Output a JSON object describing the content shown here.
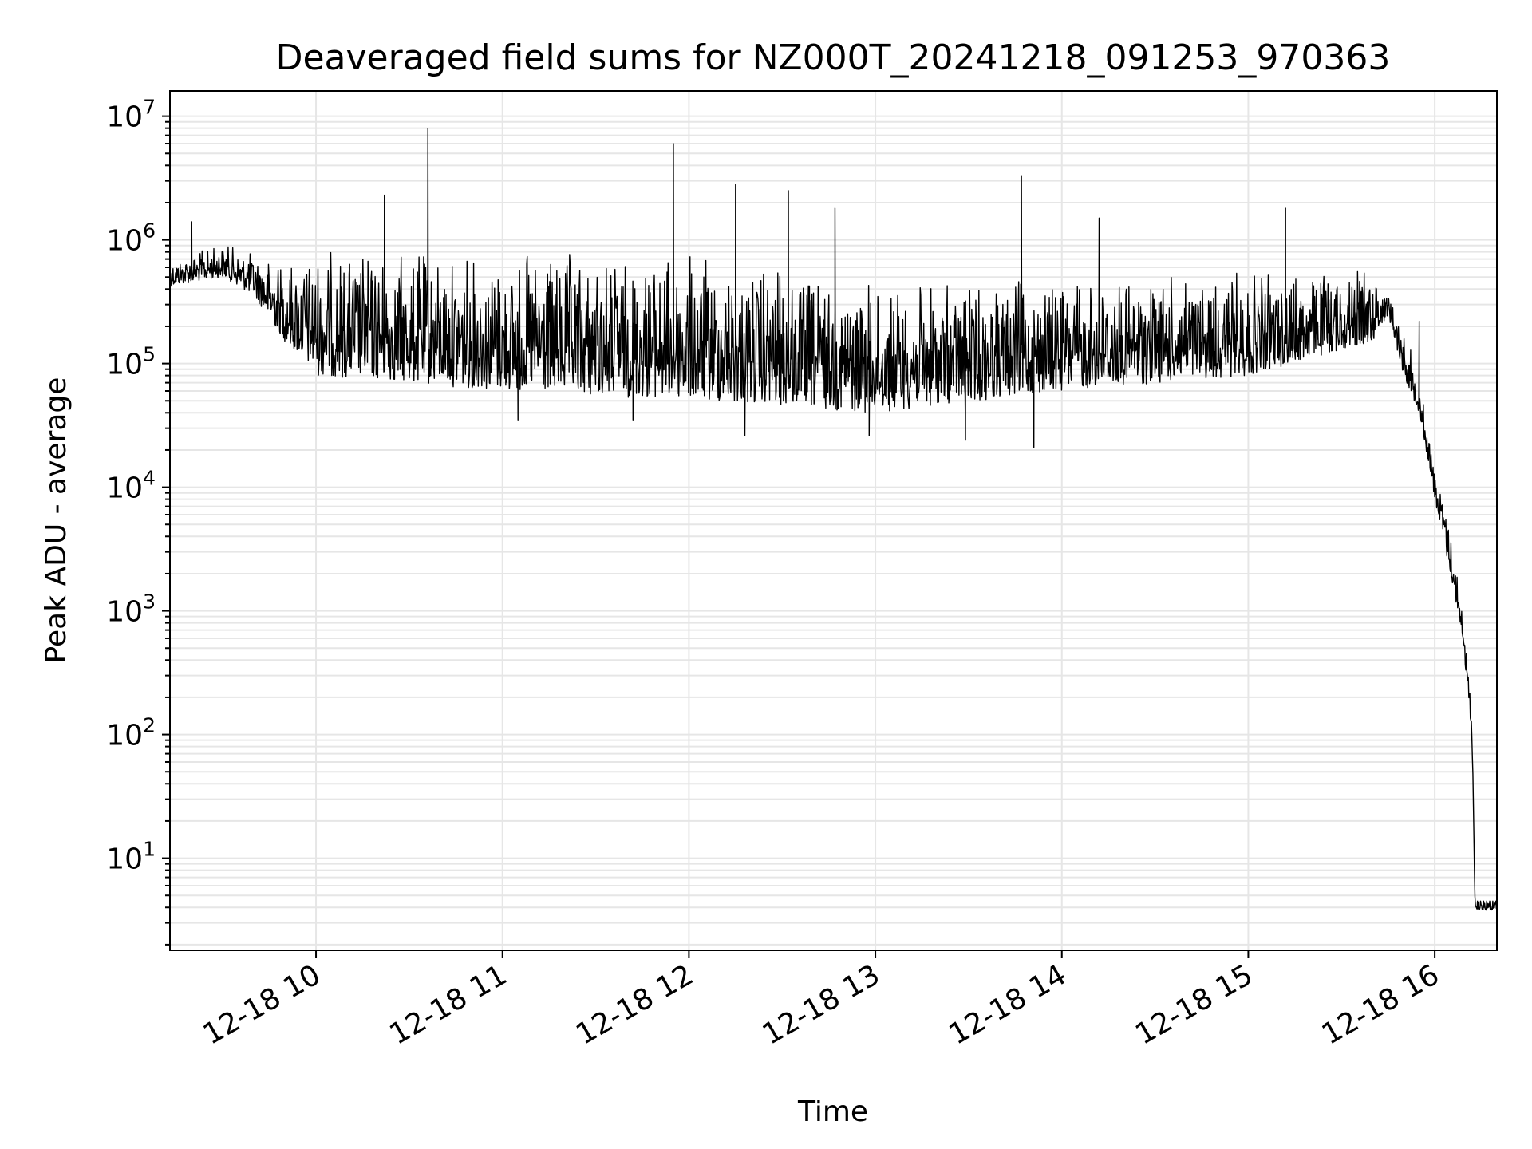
{
  "chart_data": {
    "type": "line",
    "title": "Deaveraged field sums for NZ000T_20241218_091253_970363",
    "xlabel": "Time",
    "ylabel": "Peak ADU - average",
    "yscale": "log",
    "ylim": [
      1.8,
      16000000
    ],
    "xlim": [
      "12-18 09:13",
      "12-18 16:20"
    ],
    "grid": true,
    "x_ticks": [
      {
        "value": "12-18 10:00",
        "label": "12-18 10"
      },
      {
        "value": "12-18 11:00",
        "label": "12-18 11"
      },
      {
        "value": "12-18 12:00",
        "label": "12-18 12"
      },
      {
        "value": "12-18 13:00",
        "label": "12-18 13"
      },
      {
        "value": "12-18 14:00",
        "label": "12-18 14"
      },
      {
        "value": "12-18 15:00",
        "label": "12-18 15"
      },
      {
        "value": "12-18 16:00",
        "label": "12-18 16"
      }
    ],
    "y_ticks": [
      {
        "value": 10,
        "base": "10",
        "exp": "1"
      },
      {
        "value": 100,
        "base": "10",
        "exp": "2"
      },
      {
        "value": 1000,
        "base": "10",
        "exp": "3"
      },
      {
        "value": 10000,
        "base": "10",
        "exp": "4"
      },
      {
        "value": 100000,
        "base": "10",
        "exp": "5"
      },
      {
        "value": 1000000,
        "base": "10",
        "exp": "6"
      },
      {
        "value": 10000000,
        "base": "10",
        "exp": "7"
      }
    ],
    "line_color": "#000000",
    "grid_color": "#e6e6e6",
    "series_envelope": [
      {
        "t": "12-18 09:13",
        "low": 420000,
        "high": 700000
      },
      {
        "t": "12-18 09:30",
        "low": 500000,
        "high": 950000
      },
      {
        "t": "12-18 09:40",
        "low": 350000,
        "high": 800000
      },
      {
        "t": "12-18 09:50",
        "low": 150000,
        "high": 700000
      },
      {
        "t": "12-18 10:00",
        "low": 80000,
        "high": 900000
      },
      {
        "t": "12-18 11:00",
        "low": 60000,
        "high": 800000
      },
      {
        "t": "12-18 12:00",
        "low": 50000,
        "high": 800000
      },
      {
        "t": "12-18 13:00",
        "low": 40000,
        "high": 450000
      },
      {
        "t": "12-18 14:00",
        "low": 60000,
        "high": 500000
      },
      {
        "t": "12-18 15:00",
        "low": 80000,
        "high": 550000
      },
      {
        "t": "12-18 15:40",
        "low": 150000,
        "high": 600000
      },
      {
        "t": "12-18 15:45",
        "low": 250000,
        "high": 400000
      },
      {
        "t": "12-18 15:50",
        "low": 80000,
        "high": 200000
      },
      {
        "t": "12-18 15:55",
        "low": 40000,
        "high": 80000
      },
      {
        "t": "12-18 16:00",
        "low": 8000,
        "high": 15000
      },
      {
        "t": "12-18 16:05",
        "low": 2000,
        "high": 5000
      },
      {
        "t": "12-18 16:09",
        "low": 600,
        "high": 1000
      },
      {
        "t": "12-18 16:12",
        "low": 90,
        "high": 170
      },
      {
        "t": "12-18 16:13",
        "low": 3.8,
        "high": 4.5
      },
      {
        "t": "12-18 16:20",
        "low": 3.8,
        "high": 4.5
      }
    ],
    "spikes": [
      {
        "t": "12-18 09:20",
        "value": 1400000
      },
      {
        "t": "12-18 10:22",
        "value": 2300000
      },
      {
        "t": "12-18 10:36",
        "value": 8000000
      },
      {
        "t": "12-18 11:55",
        "value": 6000000
      },
      {
        "t": "12-18 12:15",
        "value": 2800000
      },
      {
        "t": "12-18 12:32",
        "value": 2500000
      },
      {
        "t": "12-18 12:47",
        "value": 1800000
      },
      {
        "t": "12-18 13:47",
        "value": 3300000
      },
      {
        "t": "12-18 14:12",
        "value": 1500000
      },
      {
        "t": "12-18 15:12",
        "value": 1800000
      },
      {
        "t": "12-18 15:55",
        "value": 220000
      }
    ],
    "dips": [
      {
        "t": "12-18 11:05",
        "value": 35000
      },
      {
        "t": "12-18 12:18",
        "value": 26000
      },
      {
        "t": "12-18 12:58",
        "value": 26000
      },
      {
        "t": "12-18 13:29",
        "value": 24000
      },
      {
        "t": "12-18 13:51",
        "value": 21000
      },
      {
        "t": "12-18 11:42",
        "value": 35000
      }
    ]
  }
}
